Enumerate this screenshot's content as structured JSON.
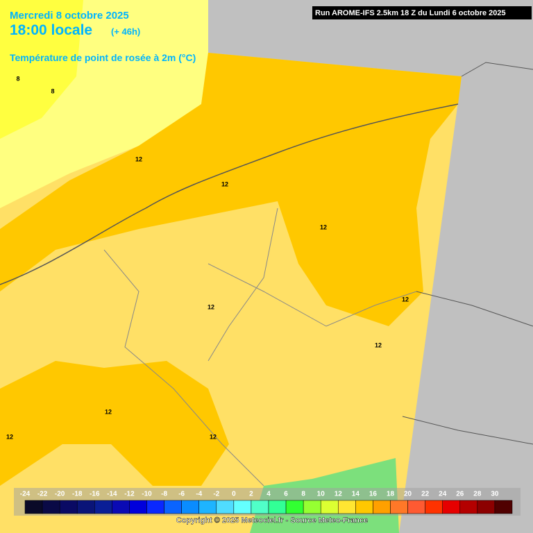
{
  "header": {
    "date": "Mercredi 8 octobre 2025",
    "time": "18:00 locale",
    "lead": "(+ 46h)",
    "variable": "Température de point de rosée à 2m (°C)",
    "run": "Run AROME-IFS 2.5km 18 Z du Lundi 6 octobre 2025"
  },
  "map": {
    "contour_labels": [
      "8",
      "8",
      "12",
      "12",
      "12",
      "12",
      "12",
      "12",
      "12",
      "12",
      "12"
    ]
  },
  "legend": {
    "labels": [
      "-24",
      "-22",
      "-20",
      "-18",
      "-16",
      "-14",
      "-12",
      "-10",
      "-8",
      "-6",
      "-4",
      "-2",
      "0",
      "2",
      "4",
      "6",
      "8",
      "10",
      "12",
      "14",
      "16",
      "18",
      "20",
      "22",
      "24",
      "26",
      "28",
      "30"
    ],
    "colors": [
      "#0a0a28",
      "#0a0a46",
      "#0a0a64",
      "#0a1478",
      "#0a1e96",
      "#0a0ab4",
      "#0000dc",
      "#0a28ff",
      "#0a64ff",
      "#0a8cff",
      "#1eb4ff",
      "#50dcff",
      "#64ffff",
      "#50ffc8",
      "#32ff96",
      "#32ff32",
      "#96ff32",
      "#dcff32",
      "#ffe632",
      "#ffc800",
      "#ffa000",
      "#ff7828",
      "#ff5a32",
      "#ff3200",
      "#e60000",
      "#b40000",
      "#8c0000",
      "#500000"
    ]
  },
  "footer": {
    "copyright": "Copyright © 2025 Meteociel.fr - Source Meteo-France"
  }
}
